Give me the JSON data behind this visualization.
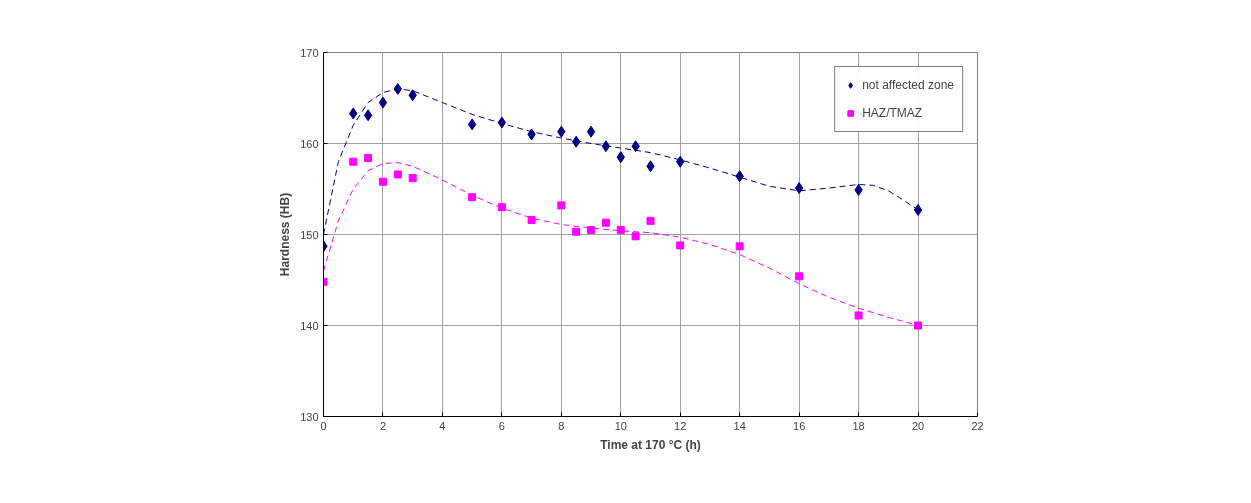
{
  "chart_data": {
    "type": "scatter",
    "xlabel": "Time at 170 °C (h)",
    "ylabel": "Hardness (HB)",
    "xlim": [
      0,
      22
    ],
    "ylim": [
      130,
      170
    ],
    "xticks": [
      0,
      2,
      4,
      6,
      8,
      10,
      12,
      14,
      16,
      18,
      20,
      22
    ],
    "yticks": [
      130,
      140,
      150,
      160,
      170
    ],
    "grid": true,
    "legend": "top right",
    "x": [
      0,
      1,
      1.5,
      2,
      2.5,
      3,
      5,
      6,
      7,
      8,
      8.5,
      9,
      9.5,
      10,
      10.5,
      11,
      12,
      14,
      16,
      18,
      20
    ],
    "series": [
      {
        "name": "not affected zone",
        "color": "#000080",
        "marker": "diamond",
        "values": [
          148.7,
          163.3,
          163.1,
          164.5,
          166.0,
          165.3,
          162.1,
          162.3,
          161.0,
          161.3,
          160.2,
          161.3,
          159.7,
          158.5,
          159.7,
          157.5,
          158.0,
          156.4,
          155.1,
          154.9,
          152.7
        ]
      },
      {
        "name": "HAZ/TMAZ",
        "color": "#ff00ff",
        "marker": "square",
        "values": [
          144.8,
          158.0,
          158.4,
          155.8,
          156.6,
          156.2,
          154.1,
          153.0,
          151.6,
          153.2,
          150.3,
          150.5,
          151.3,
          150.5,
          149.8,
          151.5,
          148.8,
          148.7,
          145.4,
          141.1,
          140.0
        ]
      },
      {
        "type": "line",
        "color": "#000080",
        "line_style": "dashed",
        "x": [
          0,
          0.5,
          1,
          1.5,
          2,
          2.5,
          3,
          4,
          5,
          6,
          7,
          8,
          9,
          10,
          11,
          12,
          13,
          14,
          15,
          16,
          17,
          18,
          18.5,
          19,
          19.5,
          20
        ],
        "values": [
          150,
          158,
          162,
          164.5,
          165.6,
          166,
          165.8,
          164.5,
          163.2,
          162.2,
          161.3,
          160.6,
          160,
          159.5,
          159,
          158.2,
          157.3,
          156.3,
          155.3,
          154.8,
          155.1,
          155.5,
          155.4,
          154.8,
          153.8,
          152.7
        ]
      },
      {
        "type": "line",
        "color": "#ff00ff",
        "line_style": "dashed",
        "x": [
          0,
          0.5,
          1,
          1.5,
          2,
          2.5,
          3,
          4,
          5,
          6,
          7,
          8,
          9,
          10,
          11,
          12,
          13,
          14,
          15,
          16,
          17,
          18,
          19,
          20
        ],
        "values": [
          146,
          151.5,
          155,
          157,
          157.8,
          157.9,
          157.5,
          156,
          154.3,
          152.9,
          151.8,
          151.1,
          150.7,
          150.4,
          150.2,
          149.7,
          148.9,
          147.8,
          146.3,
          144.6,
          143.1,
          141.9,
          140.9,
          140.0
        ]
      }
    ]
  }
}
